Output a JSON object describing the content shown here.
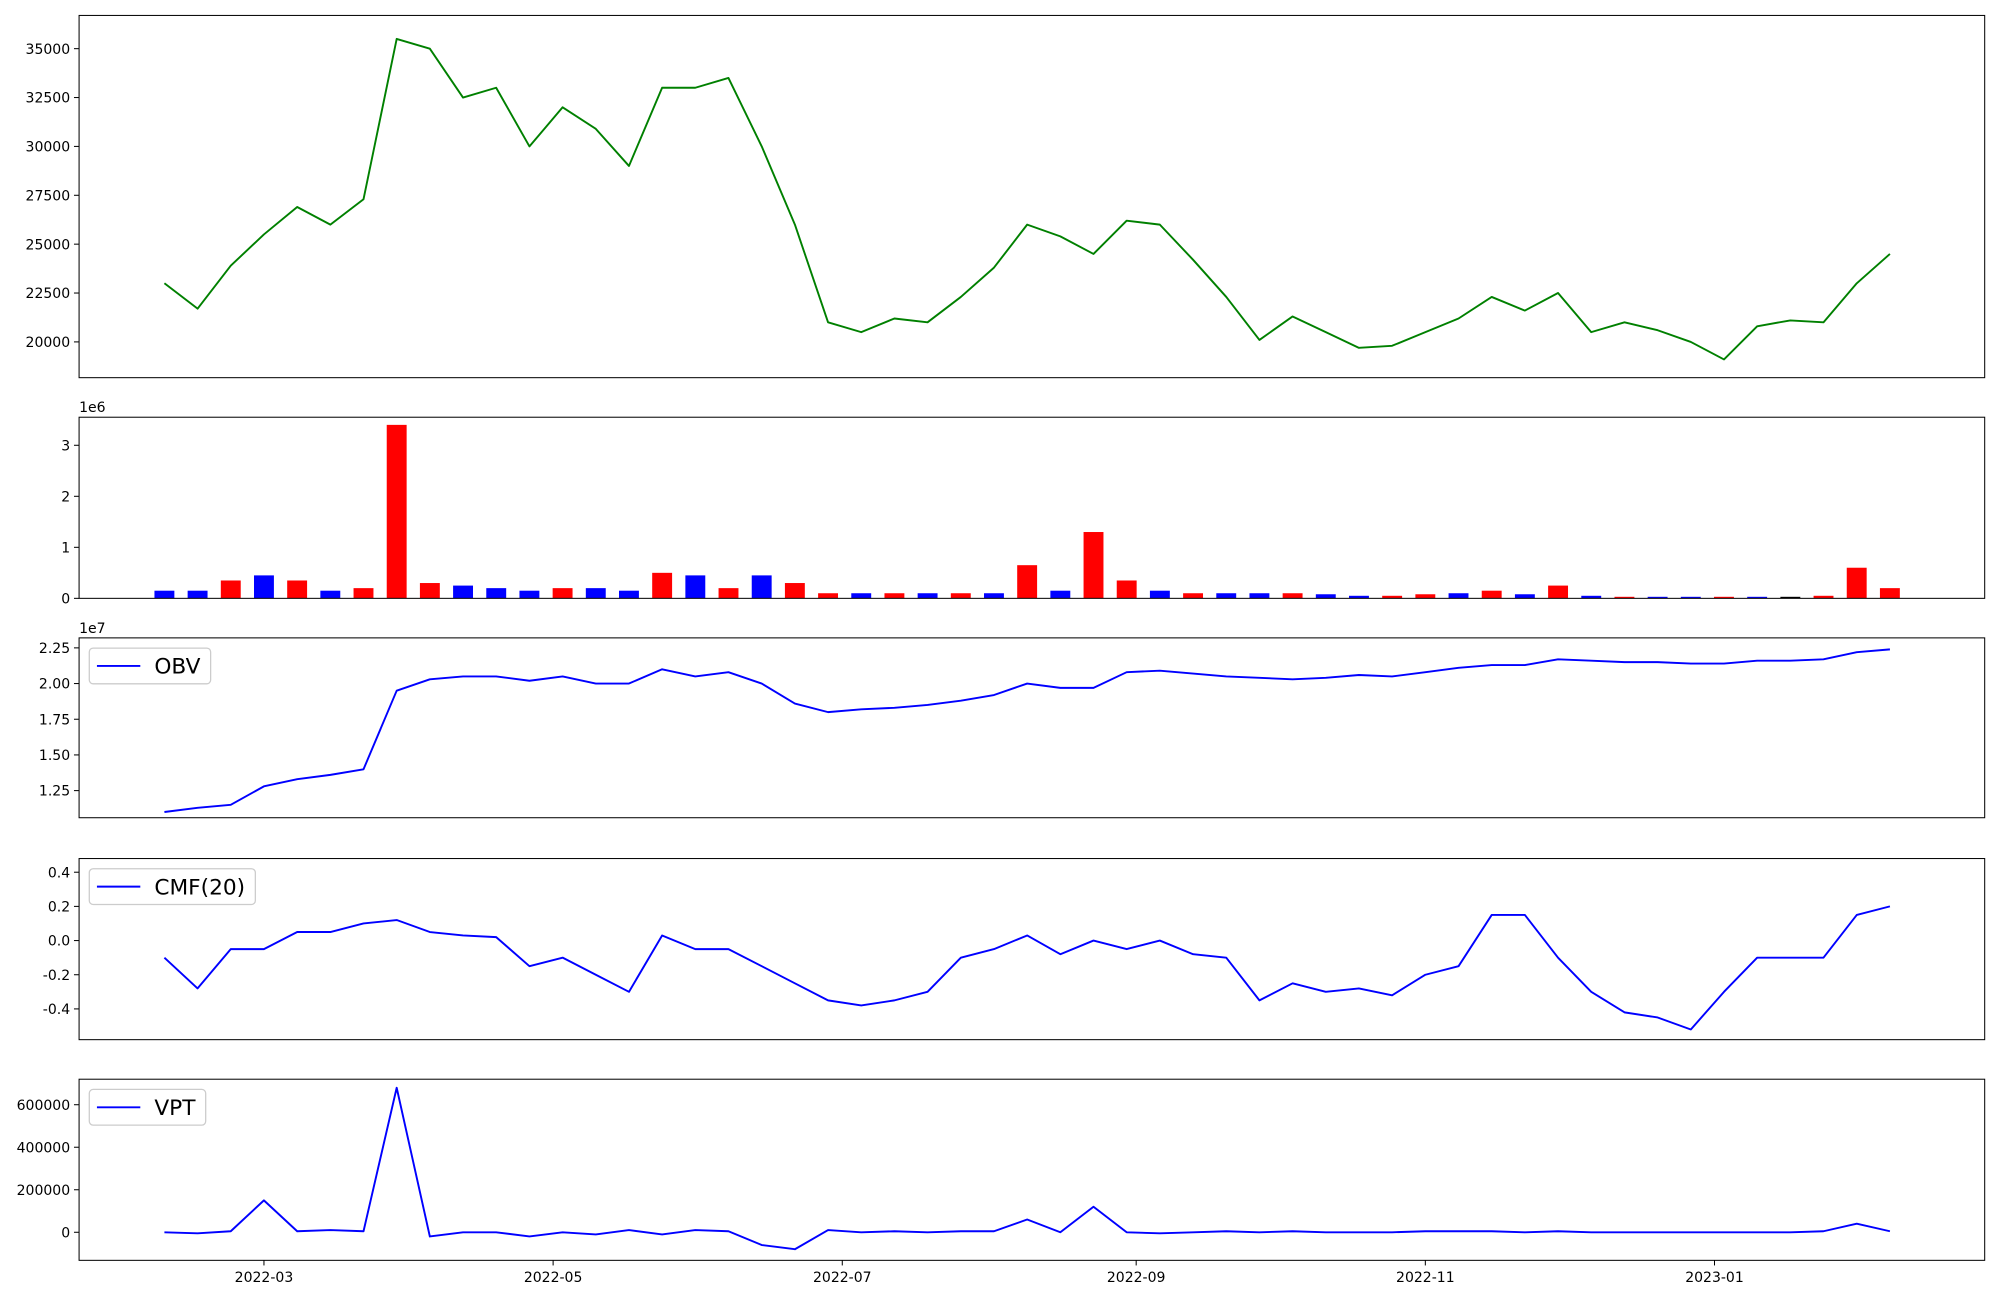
{
  "chart_data": [
    {
      "type": "line",
      "color": "green",
      "x": [
        19031,
        19038,
        19045,
        19052,
        19059,
        19066,
        19073,
        19080,
        19087,
        19094,
        19101,
        19108,
        19115,
        19122,
        19129,
        19136,
        19143,
        19150,
        19157,
        19164,
        19171,
        19178,
        19185,
        19192,
        19199,
        19206,
        19213,
        19220,
        19227,
        19234,
        19241,
        19248,
        19255,
        19262,
        19269,
        19276,
        19283,
        19290,
        19297,
        19304,
        19311,
        19318,
        19325,
        19332,
        19339,
        19346,
        19353,
        19360,
        19367,
        19374,
        19381,
        19388,
        19395
      ],
      "values": [
        23000,
        21700,
        23900,
        25500,
        26900,
        26000,
        27300,
        35500,
        35000,
        32500,
        33000,
        30000,
        32000,
        30900,
        29000,
        33000,
        33000,
        33500,
        30000,
        26000,
        21000,
        20500,
        21200,
        21000,
        22300,
        23800,
        26000,
        25400,
        24500,
        26200,
        26000,
        24200,
        22300,
        20100,
        21300,
        20500,
        19700,
        19800,
        20500,
        21200,
        22300,
        21600,
        22500,
        20500,
        21000,
        20600,
        20000,
        19100,
        20800,
        21100,
        21000,
        23000,
        24500
      ],
      "xlim": [
        19013,
        19415
      ],
      "ylim": [
        18170,
        36700
      ],
      "yticks": [
        20000,
        22500,
        25000,
        27500,
        30000,
        32500,
        35000
      ]
    },
    {
      "type": "bar",
      "offset_text": "1e6",
      "x": [
        19031,
        19038,
        19045,
        19052,
        19059,
        19066,
        19073,
        19080,
        19087,
        19094,
        19101,
        19108,
        19115,
        19122,
        19129,
        19136,
        19143,
        19150,
        19157,
        19164,
        19171,
        19178,
        19185,
        19192,
        19199,
        19206,
        19213,
        19220,
        19227,
        19234,
        19241,
        19248,
        19255,
        19262,
        19269,
        19276,
        19283,
        19290,
        19297,
        19304,
        19311,
        19318,
        19325,
        19332,
        19339,
        19346,
        19353,
        19360,
        19367,
        19374,
        19381,
        19388,
        19395
      ],
      "values": [
        0.15,
        0.15,
        0.35,
        0.45,
        0.35,
        0.15,
        0.2,
        3.4,
        0.3,
        0.25,
        0.2,
        0.15,
        0.2,
        0.2,
        0.15,
        0.5,
        0.45,
        0.2,
        0.45,
        0.3,
        0.1,
        0.1,
        0.1,
        0.1,
        0.1,
        0.1,
        0.65,
        0.15,
        1.3,
        0.35,
        0.15,
        0.1,
        0.1,
        0.1,
        0.1,
        0.08,
        0.05,
        0.05,
        0.08,
        0.1,
        0.15,
        0.08,
        0.25,
        0.05,
        0.03,
        0.03,
        0.03,
        0.03,
        0.03,
        0.03,
        0.05,
        0.6,
        0.2
      ],
      "colors": [
        "blue",
        "blue",
        "red",
        "blue",
        "red",
        "blue",
        "red",
        "red",
        "red",
        "blue",
        "blue",
        "blue",
        "red",
        "blue",
        "blue",
        "red",
        "blue",
        "red",
        "blue",
        "red",
        "red",
        "blue",
        "red",
        "blue",
        "red",
        "blue",
        "red",
        "blue",
        "red",
        "red",
        "blue",
        "red",
        "blue",
        "blue",
        "red",
        "blue",
        "blue",
        "red",
        "red",
        "blue",
        "red",
        "blue",
        "red",
        "blue",
        "red",
        "blue",
        "blue",
        "red",
        "blue",
        "black",
        "red",
        "red",
        "red"
      ],
      "xlim": [
        19013,
        19415
      ],
      "ylim": [
        0,
        3.55
      ],
      "yticks": [
        0,
        1,
        2,
        3
      ]
    },
    {
      "type": "line",
      "offset_text": "1e7",
      "legend": "upper left",
      "x": [
        19031,
        19038,
        19045,
        19052,
        19059,
        19066,
        19073,
        19080,
        19087,
        19094,
        19101,
        19108,
        19115,
        19122,
        19129,
        19136,
        19143,
        19150,
        19157,
        19164,
        19171,
        19178,
        19185,
        19192,
        19199,
        19206,
        19213,
        19220,
        19227,
        19234,
        19241,
        19248,
        19255,
        19262,
        19269,
        19276,
        19283,
        19290,
        19297,
        19304,
        19311,
        19318,
        19325,
        19332,
        19339,
        19346,
        19353,
        19360,
        19367,
        19374,
        19381,
        19388,
        19395
      ],
      "series": [
        {
          "name": "OBV",
          "color": "blue",
          "values": [
            1.1,
            1.13,
            1.15,
            1.28,
            1.33,
            1.36,
            1.4,
            1.95,
            2.03,
            2.05,
            2.05,
            2.02,
            2.05,
            2.0,
            2.0,
            2.1,
            2.05,
            2.08,
            2.0,
            1.86,
            1.8,
            1.82,
            1.83,
            1.85,
            1.88,
            1.92,
            2.0,
            1.97,
            1.97,
            2.08,
            2.09,
            2.07,
            2.05,
            2.04,
            2.03,
            2.04,
            2.06,
            2.05,
            2.08,
            2.11,
            2.13,
            2.13,
            2.17,
            2.16,
            2.15,
            2.15,
            2.14,
            2.14,
            2.16,
            2.16,
            2.17,
            2.22,
            2.24
          ]
        }
      ],
      "xlim": [
        19013,
        19415
      ],
      "ylim": [
        1.06,
        2.32
      ],
      "yticks": [
        1.25,
        {
          "value": 1.5,
          "label": "1.50"
        },
        1.75,
        {
          "value": 2,
          "label": "2.00"
        },
        2.25
      ]
    },
    {
      "type": "line",
      "legend": "upper left",
      "x": [
        19031,
        19038,
        19045,
        19052,
        19059,
        19066,
        19073,
        19080,
        19087,
        19094,
        19101,
        19108,
        19115,
        19122,
        19129,
        19136,
        19143,
        19150,
        19157,
        19164,
        19171,
        19178,
        19185,
        19192,
        19199,
        19206,
        19213,
        19220,
        19227,
        19234,
        19241,
        19248,
        19255,
        19262,
        19269,
        19276,
        19283,
        19290,
        19297,
        19304,
        19311,
        19318,
        19325,
        19332,
        19339,
        19346,
        19353,
        19360,
        19367,
        19374,
        19381,
        19388,
        19395
      ],
      "series": [
        {
          "name": "CMF(20)",
          "color": "blue",
          "values": [
            -0.1,
            -0.28,
            -0.05,
            -0.05,
            0.05,
            0.05,
            0.1,
            0.12,
            0.05,
            0.03,
            0.02,
            -0.15,
            -0.1,
            -0.2,
            -0.3,
            0.03,
            -0.05,
            -0.05,
            -0.15,
            -0.25,
            -0.35,
            -0.38,
            -0.35,
            -0.3,
            -0.1,
            -0.05,
            0.03,
            -0.08,
            0.0,
            -0.05,
            0.0,
            -0.08,
            -0.1,
            -0.35,
            -0.25,
            -0.3,
            -0.28,
            -0.32,
            -0.2,
            -0.15,
            0.15,
            0.15,
            -0.1,
            -0.3,
            -0.42,
            -0.45,
            -0.52,
            -0.3,
            -0.1,
            -0.1,
            -0.1,
            0.15,
            0.2
          ]
        }
      ],
      "xlim": [
        19013,
        19415
      ],
      "ylim": [
        -0.58,
        0.48
      ],
      "yticks": [
        -0.4,
        -0.2,
        {
          "value": 0,
          "label": "0.0"
        },
        0.2,
        0.4
      ]
    },
    {
      "type": "line",
      "legend": "upper left",
      "x": [
        19031,
        19038,
        19045,
        19052,
        19059,
        19066,
        19073,
        19080,
        19087,
        19094,
        19101,
        19108,
        19115,
        19122,
        19129,
        19136,
        19143,
        19150,
        19157,
        19164,
        19171,
        19178,
        19185,
        19192,
        19199,
        19206,
        19213,
        19220,
        19227,
        19234,
        19241,
        19248,
        19255,
        19262,
        19269,
        19276,
        19283,
        19290,
        19297,
        19304,
        19311,
        19318,
        19325,
        19332,
        19339,
        19346,
        19353,
        19360,
        19367,
        19374,
        19381,
        19388,
        19395
      ],
      "series": [
        {
          "name": "VPT",
          "color": "blue",
          "values": [
            0,
            -5000,
            5000,
            150000,
            5000,
            10000,
            5000,
            680000,
            -20000,
            0,
            0,
            -20000,
            0,
            -10000,
            10000,
            -10000,
            10000,
            5000,
            -60000,
            -80000,
            10000,
            0,
            5000,
            0,
            5000,
            5000,
            60000,
            0,
            120000,
            0,
            -5000,
            0,
            5000,
            0,
            5000,
            0,
            0,
            0,
            5000,
            5000,
            5000,
            0,
            5000,
            0,
            0,
            0,
            0,
            0,
            0,
            0,
            5000,
            40000,
            5000
          ]
        }
      ],
      "xlim": [
        19013,
        19415
      ],
      "ylim": [
        -132000,
        720000
      ],
      "yticks": [
        0,
        200000,
        400000,
        600000
      ],
      "xticks": [
        {
          "value": 19052,
          "label": "2022-03"
        },
        {
          "value": 19113,
          "label": "2022-05"
        },
        {
          "value": 19174,
          "label": "2022-07"
        },
        {
          "value": 19236,
          "label": "2022-09"
        },
        {
          "value": 19297,
          "label": "2022-11"
        },
        {
          "value": 19358,
          "label": "2023-01"
        }
      ]
    }
  ]
}
